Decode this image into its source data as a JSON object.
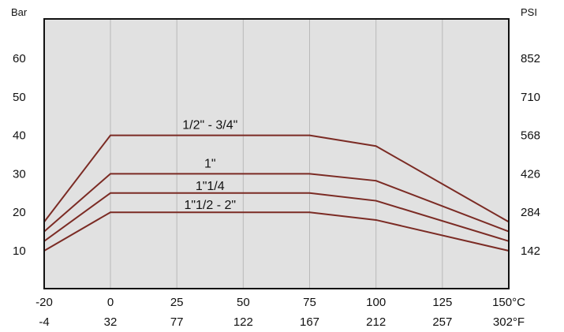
{
  "chart_data": {
    "type": "line",
    "title": "",
    "xlabel": "",
    "ylabel": "",
    "left_unit": "Bar",
    "right_unit": "PSI",
    "x": [
      -20,
      0,
      25,
      50,
      75,
      100,
      125,
      150
    ],
    "xlim": [
      -20,
      150
    ],
    "ylim": [
      0,
      72
    ],
    "grid": true,
    "x_ticks_celsius": [
      "-20",
      "0",
      "25",
      "50",
      "75",
      "100",
      "125",
      "150°C"
    ],
    "x_ticks_fahrenheit": [
      "-4",
      "32",
      "77",
      "122",
      "167",
      "212",
      "257",
      "302°F"
    ],
    "y_ticks_bar": [
      "10",
      "20",
      "30",
      "40",
      "50",
      "60"
    ],
    "y_ticks_psi": [
      "142",
      "284",
      "426",
      "568",
      "710",
      "852"
    ],
    "line_color": "#7b2b24",
    "plot_background": "#e1e1e1",
    "grid_color": "#b9b9b9",
    "series": [
      {
        "name": "1/2\" - 3/4\"",
        "points": [
          [
            -20,
            17.5
          ],
          [
            0,
            40
          ],
          [
            75,
            40
          ],
          [
            100,
            37.2
          ],
          [
            150,
            17.5
          ]
        ]
      },
      {
        "name": "1\"",
        "points": [
          [
            -20,
            15
          ],
          [
            0,
            30
          ],
          [
            75,
            30
          ],
          [
            100,
            28.2
          ],
          [
            150,
            15
          ]
        ]
      },
      {
        "name": "1\"1/4",
        "points": [
          [
            -20,
            12.5
          ],
          [
            0,
            25
          ],
          [
            75,
            25
          ],
          [
            100,
            23
          ],
          [
            150,
            12.5
          ]
        ]
      },
      {
        "name": "1\"1/2 - 2\"",
        "points": [
          [
            -20,
            10
          ],
          [
            0,
            20
          ],
          [
            75,
            20
          ],
          [
            100,
            18
          ],
          [
            150,
            10
          ]
        ]
      }
    ]
  }
}
